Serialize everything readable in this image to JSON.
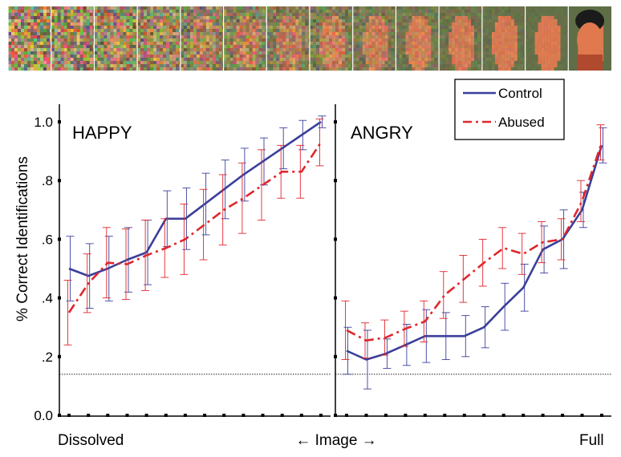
{
  "colors": {
    "control": "#3a3f9a",
    "abused": "#e0262c",
    "background": "#ffffff"
  },
  "image_strip": {
    "frames": 14,
    "description_icon": "face-dissolve-strip"
  },
  "chart_data": [
    {
      "type": "line",
      "panel_label": "HAPPY",
      "x": [
        1,
        2,
        3,
        4,
        5,
        6,
        7,
        8,
        9,
        10,
        11,
        12,
        13,
        14
      ],
      "series": [
        {
          "name": "Control",
          "values": [
            0.5,
            0.475,
            0.5,
            0.53,
            0.555,
            0.67,
            0.67,
            0.72,
            0.77,
            0.82,
            0.865,
            0.91,
            0.955,
            1.0
          ],
          "err": [
            0.11,
            0.11,
            0.11,
            0.11,
            0.11,
            0.095,
            0.105,
            0.105,
            0.1,
            0.09,
            0.08,
            0.07,
            0.05,
            0.02
          ]
        },
        {
          "name": "Abused",
          "values": [
            0.35,
            0.45,
            0.52,
            0.515,
            0.545,
            0.57,
            0.6,
            0.65,
            0.7,
            0.74,
            0.785,
            0.83,
            0.83,
            0.93
          ],
          "err": [
            0.11,
            0.1,
            0.12,
            0.12,
            0.12,
            0.1,
            0.12,
            0.12,
            0.12,
            0.12,
            0.12,
            0.09,
            0.09,
            0.08
          ]
        }
      ],
      "ylim": [
        0.0,
        1.05
      ],
      "chance_level": 0.14
    },
    {
      "type": "line",
      "panel_label": "ANGRY",
      "x": [
        1,
        2,
        3,
        4,
        5,
        6,
        7,
        8,
        9,
        10,
        11,
        12,
        13,
        14
      ],
      "series": [
        {
          "name": "Control",
          "values": [
            0.22,
            0.19,
            0.21,
            0.24,
            0.27,
            0.27,
            0.27,
            0.3,
            0.37,
            0.435,
            0.565,
            0.6,
            0.7,
            0.92
          ],
          "err": [
            0.08,
            0.1,
            0.05,
            0.07,
            0.09,
            0.08,
            0.07,
            0.07,
            0.08,
            0.08,
            0.08,
            0.1,
            0.06,
            0.06
          ]
        },
        {
          "name": "Abused",
          "values": [
            0.29,
            0.255,
            0.265,
            0.295,
            0.32,
            0.41,
            0.465,
            0.52,
            0.57,
            0.55,
            0.59,
            0.6,
            0.73,
            0.93
          ],
          "err": [
            0.1,
            0.06,
            0.06,
            0.06,
            0.07,
            0.08,
            0.08,
            0.08,
            0.07,
            0.07,
            0.07,
            0.07,
            0.07,
            0.06
          ]
        }
      ],
      "ylim": [
        0.0,
        1.05
      ],
      "chance_level": 0.14
    }
  ],
  "axes": {
    "ylabel": "% Correct Identifications",
    "yticks": [
      {
        "value": 0.0,
        "label": "0.0"
      },
      {
        "value": 0.2,
        "label": ".2"
      },
      {
        "value": 0.4,
        "label": ".4"
      },
      {
        "value": 0.6,
        "label": ".6"
      },
      {
        "value": 0.8,
        "label": ".8"
      },
      {
        "value": 1.0,
        "label": "1.0"
      }
    ],
    "xlabel_left": "Dissolved",
    "xlabel_center": "← Image →",
    "xlabel_right": "Full"
  },
  "legend": {
    "placement": "top-right",
    "entries": [
      {
        "name": "Control",
        "style": "solid"
      },
      {
        "name": "Abused",
        "style": "dash-dot"
      }
    ]
  }
}
